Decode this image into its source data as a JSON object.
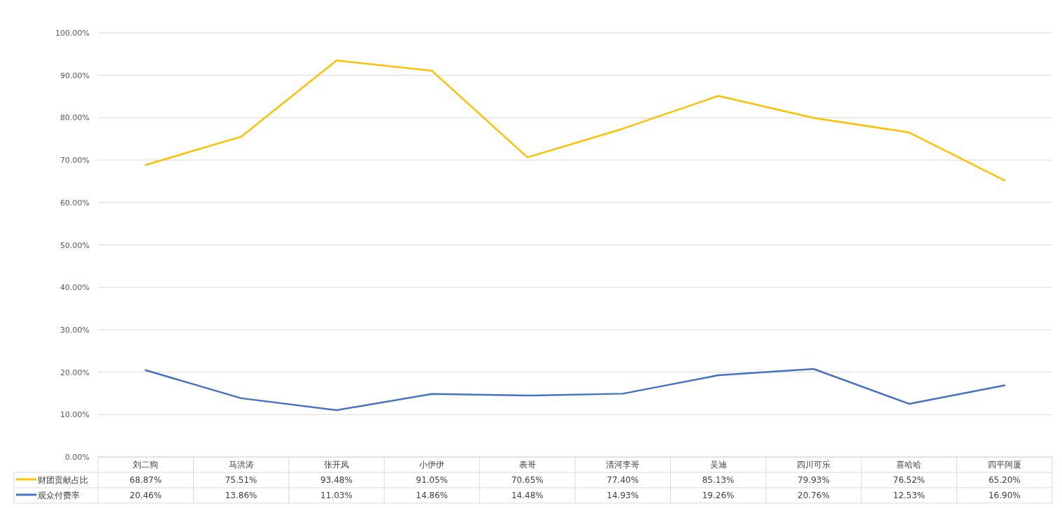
{
  "chart_data": {
    "type": "line",
    "categories": [
      "刘二狗",
      "马洪涛",
      "张开凤",
      "小伊伊",
      "表哥",
      "清河李哥",
      "吴迪",
      "四川可乐",
      "喜哈哈",
      "四平阿厦"
    ],
    "series": [
      {
        "name": "财团贡献占比",
        "color": "#ffc000",
        "values": [
          68.87,
          75.51,
          93.48,
          91.05,
          70.65,
          77.4,
          85.13,
          79.93,
          76.52,
          65.2
        ],
        "value_labels": [
          "68.87%",
          "75.51%",
          "93.48%",
          "91.05%",
          "70.65%",
          "77.40%",
          "85.13%",
          "79.93%",
          "76.52%",
          "65.20%"
        ]
      },
      {
        "name": "观众付费率",
        "color": "#4472c4",
        "values": [
          20.46,
          13.86,
          11.03,
          14.86,
          14.48,
          14.93,
          19.26,
          20.76,
          12.53,
          16.9
        ],
        "value_labels": [
          "20.46%",
          "13.86%",
          "11.03%",
          "14.86%",
          "14.48%",
          "14.93%",
          "19.26%",
          "20.76%",
          "12.53%",
          "16.90%"
        ]
      }
    ],
    "ylim": [
      0,
      100
    ],
    "yticks": [
      {
        "value": 0,
        "label": "0.00%"
      },
      {
        "value": 10,
        "label": "10.00%"
      },
      {
        "value": 20,
        "label": "20.00%"
      },
      {
        "value": 30,
        "label": "30.00%"
      },
      {
        "value": 40,
        "label": "40.00%"
      },
      {
        "value": 50,
        "label": "50.00%"
      },
      {
        "value": 60,
        "label": "60.00%"
      },
      {
        "value": 70,
        "label": "70.00%"
      },
      {
        "value": 80,
        "label": "80.00%"
      },
      {
        "value": 90,
        "label": "90.00%"
      },
      {
        "value": 100,
        "label": "100.00%"
      }
    ],
    "grid": "y",
    "legend": "bottom"
  }
}
